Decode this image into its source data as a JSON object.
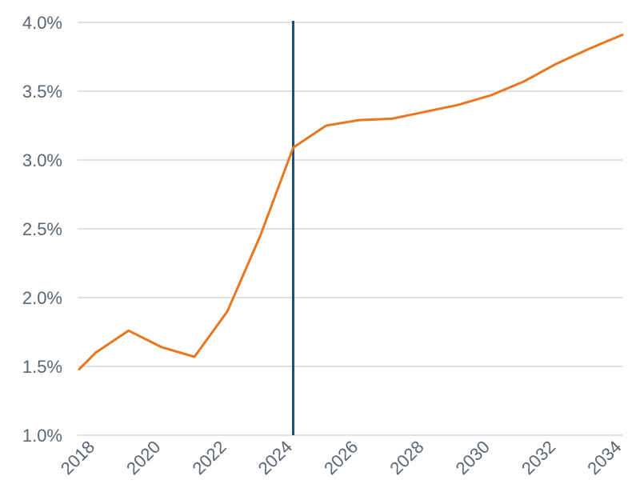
{
  "chart_data": {
    "type": "line",
    "title": "",
    "xlabel": "",
    "ylabel": "",
    "xlim": [
      2017.95,
      2034.5
    ],
    "ylim": [
      1.0,
      4.0
    ],
    "yticks": [
      1.0,
      1.5,
      2.0,
      2.5,
      3.0,
      3.5,
      4.0
    ],
    "ytick_labels": [
      "1.0%",
      "1.5%",
      "2.0%",
      "2.5%",
      "3.0%",
      "3.5%",
      "4.0%"
    ],
    "xticks": [
      2018,
      2020,
      2022,
      2024,
      2026,
      2028,
      2030,
      2032,
      2034
    ],
    "xtick_labels": [
      "2018",
      "2020",
      "2022",
      "2024",
      "2026",
      "2028",
      "2030",
      "2032",
      "2034"
    ],
    "grid": true,
    "legend": "none",
    "series": [
      {
        "color": "#e87722",
        "x": [
          2018,
          2018.5,
          2019.5,
          2020.5,
          2021.5,
          2022.5,
          2023.5,
          2024.5,
          2025.5,
          2026.5,
          2027.5,
          2028.5,
          2029.5,
          2030.5,
          2031.5,
          2032.5,
          2033.5,
          2034.5
        ],
        "values": [
          1.48,
          1.6,
          1.76,
          1.64,
          1.57,
          1.9,
          2.45,
          3.09,
          3.25,
          3.29,
          3.3,
          3.35,
          3.4,
          3.47,
          3.57,
          3.7,
          3.81,
          3.91
        ]
      }
    ],
    "reference_line": {
      "x": 2024.5,
      "color": "#1f4e79"
    }
  }
}
